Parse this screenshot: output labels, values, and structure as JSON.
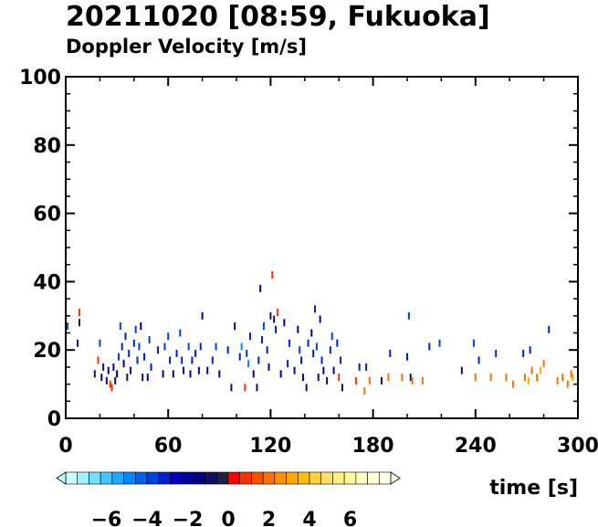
{
  "chart_data": {
    "type": "scatter",
    "title": "20211020 [08:59, Fukuoka]",
    "subtitle": "Doppler Velocity [m/s]",
    "xlabel": "time [s]",
    "ylabel": "",
    "xlim": [
      0,
      300
    ],
    "ylim": [
      0,
      100
    ],
    "xticks": [
      "0",
      "60",
      "120",
      "180",
      "240",
      "300"
    ],
    "yticks": [
      "0",
      "20",
      "40",
      "60",
      "80",
      "100"
    ],
    "grid": false,
    "colorbar": {
      "range": [
        -8,
        8
      ],
      "tick_labels": [
        "−6",
        "−4",
        "−2",
        "0",
        "2",
        "4",
        "6"
      ],
      "tick_values": [
        -6,
        -4,
        -2,
        0,
        2,
        4,
        6
      ],
      "colors": [
        "#c8ffff",
        "#a0f0ff",
        "#70e0ff",
        "#40c8ff",
        "#20a8ff",
        "#0088ff",
        "#0060f0",
        "#0040e0",
        "#0020d0",
        "#0000c0",
        "#0000a0",
        "#000080",
        "#101060",
        "#202040",
        "#ff0000",
        "#ff3000",
        "#ff5000",
        "#ff7000",
        "#ff9000",
        "#ffa800",
        "#ffc000",
        "#ffd040",
        "#ffe060",
        "#fff080",
        "#fff8a0",
        "#fffcc0",
        "#fffed8",
        "#ffffe8"
      ]
    },
    "points": [
      {
        "x": 1,
        "y": 27,
        "v": -4
      },
      {
        "x": 7,
        "y": 22,
        "v": -1
      },
      {
        "x": 8,
        "y": 31,
        "v": 1
      },
      {
        "x": 8,
        "y": 28,
        "v": -1
      },
      {
        "x": 17,
        "y": 13,
        "v": -1
      },
      {
        "x": 19,
        "y": 17,
        "v": 1
      },
      {
        "x": 20,
        "y": 22,
        "v": -4
      },
      {
        "x": 21,
        "y": 12,
        "v": -2
      },
      {
        "x": 22,
        "y": 15,
        "v": -1
      },
      {
        "x": 24,
        "y": 11,
        "v": -1
      },
      {
        "x": 25,
        "y": 14,
        "v": -2
      },
      {
        "x": 26,
        "y": 10,
        "v": 1
      },
      {
        "x": 27,
        "y": 9,
        "v": 1
      },
      {
        "x": 28,
        "y": 15,
        "v": -2
      },
      {
        "x": 29,
        "y": 11,
        "v": -1
      },
      {
        "x": 30,
        "y": 13,
        "v": -2
      },
      {
        "x": 31,
        "y": 18,
        "v": -4
      },
      {
        "x": 32,
        "y": 27,
        "v": -4
      },
      {
        "x": 33,
        "y": 21,
        "v": -3
      },
      {
        "x": 34,
        "y": 16,
        "v": -2
      },
      {
        "x": 35,
        "y": 24,
        "v": -3
      },
      {
        "x": 36,
        "y": 12,
        "v": -1
      },
      {
        "x": 37,
        "y": 19,
        "v": -3
      },
      {
        "x": 38,
        "y": 14,
        "v": -2
      },
      {
        "x": 40,
        "y": 22,
        "v": -3
      },
      {
        "x": 41,
        "y": 26,
        "v": -4
      },
      {
        "x": 42,
        "y": 17,
        "v": -3
      },
      {
        "x": 43,
        "y": 21,
        "v": -4
      },
      {
        "x": 44,
        "y": 27,
        "v": -2
      },
      {
        "x": 45,
        "y": 12,
        "v": -1
      },
      {
        "x": 46,
        "y": 18,
        "v": -3
      },
      {
        "x": 48,
        "y": 12,
        "v": -2
      },
      {
        "x": 49,
        "y": 23,
        "v": -4
      },
      {
        "x": 50,
        "y": 15,
        "v": -3
      },
      {
        "x": 54,
        "y": 20,
        "v": -3
      },
      {
        "x": 57,
        "y": 13,
        "v": -2
      },
      {
        "x": 58,
        "y": 21,
        "v": -4
      },
      {
        "x": 60,
        "y": 24,
        "v": -4
      },
      {
        "x": 61,
        "y": 17,
        "v": -3
      },
      {
        "x": 63,
        "y": 13,
        "v": -2
      },
      {
        "x": 65,
        "y": 19,
        "v": -3
      },
      {
        "x": 67,
        "y": 25,
        "v": -4
      },
      {
        "x": 68,
        "y": 17,
        "v": -3
      },
      {
        "x": 69,
        "y": 14,
        "v": -2
      },
      {
        "x": 72,
        "y": 21,
        "v": -4
      },
      {
        "x": 73,
        "y": 13,
        "v": -2
      },
      {
        "x": 74,
        "y": 17,
        "v": -3
      },
      {
        "x": 76,
        "y": 19,
        "v": -3
      },
      {
        "x": 78,
        "y": 14,
        "v": -2
      },
      {
        "x": 79,
        "y": 21,
        "v": -3
      },
      {
        "x": 80,
        "y": 30,
        "v": -2
      },
      {
        "x": 83,
        "y": 14,
        "v": -2
      },
      {
        "x": 86,
        "y": 17,
        "v": -3
      },
      {
        "x": 88,
        "y": 21,
        "v": -4
      },
      {
        "x": 90,
        "y": 13,
        "v": -2
      },
      {
        "x": 95,
        "y": 20,
        "v": -3
      },
      {
        "x": 97,
        "y": 9,
        "v": -1
      },
      {
        "x": 99,
        "y": 27,
        "v": -2
      },
      {
        "x": 102,
        "y": 18,
        "v": -3
      },
      {
        "x": 103,
        "y": 21,
        "v": -5
      },
      {
        "x": 105,
        "y": 9,
        "v": 1
      },
      {
        "x": 106,
        "y": 19,
        "v": -4
      },
      {
        "x": 107,
        "y": 16,
        "v": -5
      },
      {
        "x": 108,
        "y": 24,
        "v": -3
      },
      {
        "x": 110,
        "y": 13,
        "v": -2
      },
      {
        "x": 112,
        "y": 9,
        "v": -1
      },
      {
        "x": 113,
        "y": 17,
        "v": -3
      },
      {
        "x": 114,
        "y": 38,
        "v": -2
      },
      {
        "x": 115,
        "y": 23,
        "v": -3
      },
      {
        "x": 116,
        "y": 27,
        "v": -4
      },
      {
        "x": 118,
        "y": 20,
        "v": -3
      },
      {
        "x": 119,
        "y": 15,
        "v": -2
      },
      {
        "x": 120,
        "y": 30,
        "v": -1
      },
      {
        "x": 121,
        "y": 42,
        "v": 1
      },
      {
        "x": 122,
        "y": 29,
        "v": -1
      },
      {
        "x": 123,
        "y": 26,
        "v": -3
      },
      {
        "x": 124,
        "y": 31,
        "v": 1
      },
      {
        "x": 126,
        "y": 13,
        "v": -2
      },
      {
        "x": 128,
        "y": 28,
        "v": -2
      },
      {
        "x": 130,
        "y": 16,
        "v": -3
      },
      {
        "x": 131,
        "y": 22,
        "v": -3
      },
      {
        "x": 134,
        "y": 14,
        "v": -2
      },
      {
        "x": 136,
        "y": 26,
        "v": -2
      },
      {
        "x": 137,
        "y": 20,
        "v": -4
      },
      {
        "x": 138,
        "y": 17,
        "v": -3
      },
      {
        "x": 139,
        "y": 12,
        "v": -2
      },
      {
        "x": 141,
        "y": 9,
        "v": -1
      },
      {
        "x": 142,
        "y": 22,
        "v": -3
      },
      {
        "x": 144,
        "y": 25,
        "v": -2
      },
      {
        "x": 145,
        "y": 19,
        "v": -3
      },
      {
        "x": 146,
        "y": 32,
        "v": -3
      },
      {
        "x": 147,
        "y": 21,
        "v": -4
      },
      {
        "x": 148,
        "y": 12,
        "v": -1
      },
      {
        "x": 149,
        "y": 29,
        "v": -2
      },
      {
        "x": 150,
        "y": 17,
        "v": -3
      },
      {
        "x": 151,
        "y": 14,
        "v": -2
      },
      {
        "x": 153,
        "y": 11,
        "v": -1
      },
      {
        "x": 155,
        "y": 20,
        "v": -3
      },
      {
        "x": 156,
        "y": 24,
        "v": -4
      },
      {
        "x": 157,
        "y": 14,
        "v": -2
      },
      {
        "x": 159,
        "y": 22,
        "v": -3
      },
      {
        "x": 160,
        "y": 12,
        "v": 1
      },
      {
        "x": 161,
        "y": 17,
        "v": -3
      },
      {
        "x": 162,
        "y": 9,
        "v": -1
      },
      {
        "x": 170,
        "y": 11,
        "v": 1
      },
      {
        "x": 172,
        "y": 15,
        "v": -3
      },
      {
        "x": 175,
        "y": 8,
        "v": 2
      },
      {
        "x": 176,
        "y": 15,
        "v": -3
      },
      {
        "x": 178,
        "y": 11,
        "v": 2
      },
      {
        "x": 185,
        "y": 11,
        "v": -1
      },
      {
        "x": 189,
        "y": 12,
        "v": 2
      },
      {
        "x": 190,
        "y": 19,
        "v": -3
      },
      {
        "x": 197,
        "y": 12,
        "v": 2
      },
      {
        "x": 200,
        "y": 18,
        "v": -3
      },
      {
        "x": 201,
        "y": 30,
        "v": -4
      },
      {
        "x": 202,
        "y": 12,
        "v": -1
      },
      {
        "x": 203,
        "y": 11,
        "v": 2
      },
      {
        "x": 209,
        "y": 11,
        "v": 2
      },
      {
        "x": 213,
        "y": 21,
        "v": -3
      },
      {
        "x": 219,
        "y": 22,
        "v": -4
      },
      {
        "x": 232,
        "y": 14,
        "v": -1
      },
      {
        "x": 239,
        "y": 22,
        "v": -4
      },
      {
        "x": 240,
        "y": 12,
        "v": 2
      },
      {
        "x": 242,
        "y": 17,
        "v": -3
      },
      {
        "x": 249,
        "y": 12,
        "v": 2
      },
      {
        "x": 252,
        "y": 19,
        "v": -3
      },
      {
        "x": 258,
        "y": 12,
        "v": 2
      },
      {
        "x": 262,
        "y": 10,
        "v": 2
      },
      {
        "x": 268,
        "y": 19,
        "v": -3
      },
      {
        "x": 269,
        "y": 12,
        "v": 2
      },
      {
        "x": 271,
        "y": 11,
        "v": 3
      },
      {
        "x": 272,
        "y": 20,
        "v": -3
      },
      {
        "x": 273,
        "y": 14,
        "v": 2
      },
      {
        "x": 276,
        "y": 12,
        "v": 2
      },
      {
        "x": 278,
        "y": 14,
        "v": 3
      },
      {
        "x": 280,
        "y": 16,
        "v": 2
      },
      {
        "x": 283,
        "y": 26,
        "v": -3
      },
      {
        "x": 288,
        "y": 11,
        "v": 2
      },
      {
        "x": 291,
        "y": 12,
        "v": 2
      },
      {
        "x": 294,
        "y": 10,
        "v": 2
      },
      {
        "x": 296,
        "y": 13,
        "v": 2
      },
      {
        "x": 297,
        "y": 12,
        "v": 3
      }
    ]
  }
}
